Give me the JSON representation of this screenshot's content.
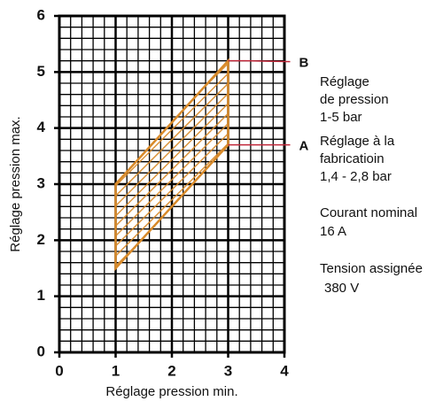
{
  "chart_data": {
    "type": "polygon",
    "x": [
      1,
      1,
      3,
      3
    ],
    "y": [
      1.5,
      3,
      5.2,
      3.7
    ],
    "color": "#d88a2a",
    "grid": true,
    "xlim": [
      0,
      4
    ],
    "xticks": [
      0,
      1,
      2,
      3,
      4
    ],
    "ylim": [
      0,
      6
    ],
    "yticks": [
      0,
      1,
      2,
      3,
      4,
      5,
      6
    ],
    "xlabel": "Réglage pression min.",
    "ylabel": "Réglage pression max.",
    "markers": [
      {
        "label": "B",
        "color": "#c0283a"
      },
      {
        "label": "A",
        "color": "#c0283a"
      }
    ],
    "notes": [
      [
        "Réglage",
        "de pression",
        "1-5 bar"
      ],
      [
        "Réglage à la",
        "fabricatioin",
        "1,4 - 2,8 bar"
      ],
      [
        "Courant nominal",
        "16 A"
      ],
      [
        "Tension assignée",
        "380 V"
      ]
    ]
  }
}
